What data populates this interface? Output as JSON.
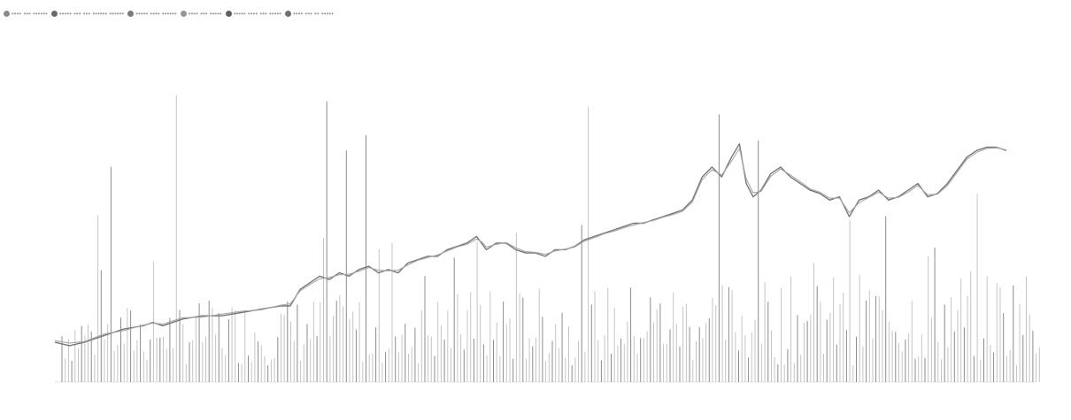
{
  "chart_data": {
    "type": "bar",
    "legend": {
      "placement": "top-left",
      "items": [
        {
          "label": "•••• ••• ••••••",
          "color": "#8a8a8a"
        },
        {
          "label": "••••• ••• ••• •••••• ••••••",
          "color": "#6a6a6a"
        },
        {
          "label": "••••• •••• ••••••",
          "color": "#7a7a7a"
        },
        {
          "label": "•••• ••• •••••",
          "color": "#959595"
        },
        {
          "label": "••••• •••• ••• •••••",
          "color": "#5f5f5f"
        },
        {
          "label": "•••• ••• •• •••••",
          "color": "#707070"
        }
      ]
    },
    "left_axis": {
      "ticks": [
        "",
        "",
        "",
        "",
        "",
        "",
        "",
        "",
        "",
        ""
      ],
      "ylim": [
        0,
        100
      ]
    },
    "right_axis": {
      "ticks": [
        "",
        "",
        "",
        "",
        "",
        "",
        "",
        "",
        "",
        ""
      ],
      "ylim": [
        0,
        100
      ]
    },
    "x_axis": {
      "ticks": [
        "",
        "",
        "",
        "",
        "",
        "",
        ""
      ]
    },
    "footer_left": "",
    "footer_right": "",
    "volume_seed": 7,
    "volume_count": 300,
    "price_series": [
      {
        "name": "",
        "color": "#777777",
        "points": [
          [
            0,
            12
          ],
          [
            1.5,
            11
          ],
          [
            3,
            12
          ],
          [
            5,
            14
          ],
          [
            7,
            16
          ],
          [
            9,
            17
          ],
          [
            10,
            18
          ],
          [
            11,
            17
          ],
          [
            13,
            19
          ],
          [
            15,
            20
          ],
          [
            17,
            20
          ],
          [
            19,
            21
          ],
          [
            21,
            22
          ],
          [
            23,
            23
          ],
          [
            24,
            23
          ],
          [
            25,
            28
          ],
          [
            26,
            30
          ],
          [
            27,
            32
          ],
          [
            28,
            31
          ],
          [
            29,
            33
          ],
          [
            30,
            32
          ],
          [
            31,
            34
          ],
          [
            32,
            35
          ],
          [
            33,
            33
          ],
          [
            34,
            34
          ],
          [
            35,
            33
          ],
          [
            36,
            36
          ],
          [
            37,
            37
          ],
          [
            38,
            38
          ],
          [
            39,
            38
          ],
          [
            40,
            40
          ],
          [
            41,
            41
          ],
          [
            42,
            42
          ],
          [
            43,
            44
          ],
          [
            43.5,
            42
          ],
          [
            44,
            40
          ],
          [
            45,
            42
          ],
          [
            46,
            42
          ],
          [
            47,
            40
          ],
          [
            48,
            39
          ],
          [
            49,
            39
          ],
          [
            50,
            38
          ],
          [
            51,
            40
          ],
          [
            52,
            40
          ],
          [
            53,
            41
          ],
          [
            54,
            43
          ],
          [
            55,
            44
          ],
          [
            56,
            45
          ],
          [
            57,
            46
          ],
          [
            58,
            47
          ],
          [
            59,
            48
          ],
          [
            60,
            48
          ],
          [
            61,
            49
          ],
          [
            62,
            50
          ],
          [
            63,
            51
          ],
          [
            64,
            52
          ],
          [
            65,
            55
          ],
          [
            66,
            62
          ],
          [
            67,
            65
          ],
          [
            68,
            62
          ],
          [
            69,
            68
          ],
          [
            69.8,
            72
          ],
          [
            70.5,
            60
          ],
          [
            71.2,
            56
          ],
          [
            72,
            58
          ],
          [
            73,
            63
          ],
          [
            74,
            65
          ],
          [
            75,
            62
          ],
          [
            76,
            60
          ],
          [
            77,
            58
          ],
          [
            78,
            57
          ],
          [
            79,
            55
          ],
          [
            80,
            56
          ],
          [
            81,
            50
          ],
          [
            82,
            55
          ],
          [
            83,
            56
          ],
          [
            84,
            58
          ],
          [
            85,
            55
          ],
          [
            86,
            56
          ],
          [
            87,
            58
          ],
          [
            88,
            60
          ],
          [
            89,
            56
          ],
          [
            90,
            57
          ],
          [
            91,
            60
          ],
          [
            92,
            64
          ],
          [
            93,
            68
          ],
          [
            94,
            70
          ],
          [
            95,
            71
          ],
          [
            96,
            71
          ],
          [
            97,
            70
          ]
        ]
      },
      {
        "name": "",
        "color": "#a8a8a8",
        "points": [
          [
            0,
            12.5
          ],
          [
            1.5,
            11.8
          ],
          [
            3,
            12.2
          ],
          [
            5,
            14.5
          ],
          [
            7,
            15.5
          ],
          [
            9,
            17.2
          ],
          [
            10,
            17.8
          ],
          [
            11,
            17.5
          ],
          [
            13,
            19.4
          ],
          [
            15,
            19.6
          ],
          [
            17,
            20.5
          ],
          [
            19,
            21.4
          ],
          [
            21,
            21.8
          ],
          [
            23,
            23.2
          ],
          [
            24,
            23.6
          ],
          [
            25,
            27.5
          ],
          [
            26,
            29.5
          ],
          [
            27,
            31.2
          ],
          [
            28,
            31.6
          ],
          [
            29,
            32.4
          ],
          [
            30,
            32.6
          ],
          [
            31,
            33.5
          ],
          [
            32,
            34.6
          ],
          [
            33,
            33.8
          ],
          [
            34,
            33.6
          ],
          [
            35,
            33.8
          ],
          [
            36,
            35.4
          ],
          [
            37,
            36.8
          ],
          [
            38,
            37.6
          ],
          [
            39,
            38.4
          ],
          [
            40,
            39.6
          ],
          [
            41,
            40.8
          ],
          [
            42,
            41.6
          ],
          [
            43,
            43.2
          ],
          [
            43.5,
            42.4
          ],
          [
            44,
            40.8
          ],
          [
            45,
            41.6
          ],
          [
            46,
            42.2
          ],
          [
            47,
            40.6
          ],
          [
            48,
            39.4
          ],
          [
            49,
            39.2
          ],
          [
            50,
            38.6
          ],
          [
            51,
            39.6
          ],
          [
            52,
            40.2
          ],
          [
            53,
            40.8
          ],
          [
            54,
            42.6
          ],
          [
            55,
            43.6
          ],
          [
            56,
            44.8
          ],
          [
            57,
            45.6
          ],
          [
            58,
            46.6
          ],
          [
            59,
            47.4
          ],
          [
            60,
            48.2
          ],
          [
            61,
            48.8
          ],
          [
            62,
            49.8
          ],
          [
            63,
            50.6
          ],
          [
            64,
            51.6
          ],
          [
            65,
            54.4
          ],
          [
            66,
            61.2
          ],
          [
            67,
            64.2
          ],
          [
            68,
            62.6
          ],
          [
            69,
            66.8
          ],
          [
            69.8,
            70.6
          ],
          [
            70.5,
            61.4
          ],
          [
            71.2,
            57.2
          ],
          [
            72,
            57.6
          ],
          [
            73,
            62.2
          ],
          [
            74,
            64.4
          ],
          [
            75,
            62.6
          ],
          [
            76,
            60.6
          ],
          [
            77,
            58.4
          ],
          [
            78,
            57.4
          ],
          [
            79,
            55.6
          ],
          [
            80,
            55.6
          ],
          [
            81,
            51.2
          ],
          [
            82,
            54.2
          ],
          [
            83,
            55.8
          ],
          [
            84,
            57.4
          ],
          [
            85,
            55.6
          ],
          [
            86,
            55.8
          ],
          [
            87,
            57.4
          ],
          [
            88,
            59.4
          ],
          [
            89,
            56.6
          ],
          [
            90,
            56.8
          ],
          [
            91,
            59.4
          ],
          [
            92,
            63.4
          ],
          [
            93,
            67.4
          ],
          [
            94,
            69.4
          ],
          [
            95,
            70.6
          ],
          [
            96,
            70.8
          ],
          [
            97,
            70.2
          ]
        ]
      }
    ]
  }
}
